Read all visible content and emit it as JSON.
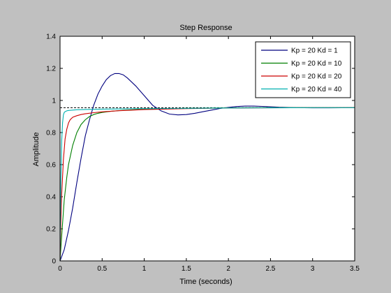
{
  "colors": {
    "figure_background": "#c0c0c0",
    "axes_background": "#ffffff",
    "reference_line": "#000000"
  },
  "chart_data": {
    "type": "line",
    "title": "Step Response",
    "xlabel": "Time (seconds)",
    "ylabel": "Amplitude",
    "xlim": [
      0,
      3.5
    ],
    "ylim": [
      0,
      1.4
    ],
    "xticks": [
      0,
      0.5,
      1,
      1.5,
      2,
      2.5,
      3,
      3.5
    ],
    "xtick_labels": [
      "0",
      "0.5",
      "1",
      "1.5",
      "2",
      "2.5",
      "3",
      "3.5"
    ],
    "yticks": [
      0,
      0.2,
      0.4,
      0.6,
      0.8,
      1,
      1.2,
      1.4
    ],
    "ytick_labels": [
      "0",
      "0.2",
      "0.4",
      "0.6",
      "0.8",
      "1",
      "1.2",
      "1.4"
    ],
    "grid": false,
    "legend_position": "top-right",
    "reference_line": {
      "y": 0.955,
      "style": "dashed"
    },
    "series": [
      {
        "name": "Kp = 20 Kd = 1",
        "color": "#00007f",
        "x": [
          0,
          0.05,
          0.1,
          0.15,
          0.2,
          0.25,
          0.3,
          0.35,
          0.4,
          0.45,
          0.5,
          0.55,
          0.6,
          0.65,
          0.7,
          0.75,
          0.8,
          0.9,
          1.0,
          1.1,
          1.2,
          1.3,
          1.4,
          1.5,
          1.6,
          1.7,
          1.8,
          1.9,
          2.0,
          2.1,
          2.2,
          2.3,
          2.4,
          2.6,
          2.8,
          3.0,
          3.2,
          3.5
        ],
        "y": [
          0,
          0.07,
          0.19,
          0.33,
          0.49,
          0.64,
          0.78,
          0.88,
          0.97,
          1.04,
          1.09,
          1.13,
          1.155,
          1.168,
          1.168,
          1.16,
          1.14,
          1.09,
          1.03,
          0.97,
          0.935,
          0.915,
          0.91,
          0.912,
          0.92,
          0.93,
          0.94,
          0.95,
          0.957,
          0.962,
          0.965,
          0.965,
          0.963,
          0.958,
          0.955,
          0.954,
          0.954,
          0.955
        ]
      },
      {
        "name": "Kp = 20 Kd = 10",
        "color": "#007f00",
        "x": [
          0,
          0.02,
          0.05,
          0.08,
          0.1,
          0.15,
          0.2,
          0.25,
          0.3,
          0.35,
          0.4,
          0.45,
          0.5,
          0.6,
          0.7,
          0.8,
          1.0,
          1.2,
          1.5,
          2.0,
          2.5,
          3.0,
          3.5
        ],
        "y": [
          0,
          0.16,
          0.38,
          0.52,
          0.6,
          0.72,
          0.8,
          0.85,
          0.88,
          0.9,
          0.912,
          0.92,
          0.925,
          0.932,
          0.937,
          0.94,
          0.945,
          0.948,
          0.951,
          0.954,
          0.955,
          0.955,
          0.955
        ]
      },
      {
        "name": "Kp = 20 Kd = 20",
        "color": "#cc0000",
        "x": [
          0,
          0.01,
          0.02,
          0.04,
          0.06,
          0.08,
          0.1,
          0.12,
          0.15,
          0.2,
          0.25,
          0.3,
          0.4,
          0.5,
          0.7,
          1.0,
          1.5,
          2.0,
          2.5,
          3.0,
          3.5
        ],
        "y": [
          0,
          0.25,
          0.42,
          0.63,
          0.76,
          0.82,
          0.86,
          0.88,
          0.895,
          0.905,
          0.912,
          0.917,
          0.924,
          0.929,
          0.936,
          0.943,
          0.949,
          0.953,
          0.954,
          0.955,
          0.955
        ]
      },
      {
        "name": "Kp = 20 Kd = 40",
        "color": "#00b0b0",
        "x": [
          0,
          0.005,
          0.01,
          0.02,
          0.03,
          0.04,
          0.05,
          0.06,
          0.08,
          0.1,
          0.15,
          0.2,
          0.3,
          0.5,
          1.0,
          1.5,
          2.0,
          2.5,
          3.0,
          3.5
        ],
        "y": [
          0,
          0.3,
          0.5,
          0.75,
          0.86,
          0.91,
          0.925,
          0.93,
          0.935,
          0.938,
          0.94,
          0.942,
          0.944,
          0.946,
          0.949,
          0.951,
          0.953,
          0.954,
          0.955,
          0.955
        ]
      }
    ]
  }
}
